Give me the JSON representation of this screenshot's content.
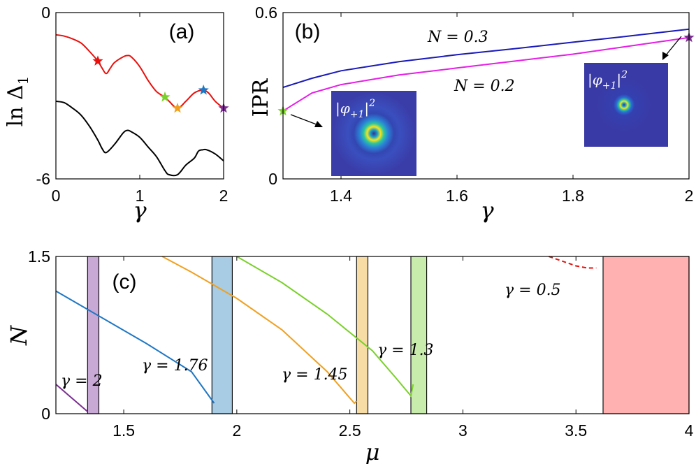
{
  "chart_data": [
    {
      "panel": "(a)",
      "type": "line",
      "xlabel": "γ",
      "ylabel": "ln Δ",
      "ylabel_sub": "1",
      "xlim": [
        0,
        2
      ],
      "ylim": [
        -6,
        0
      ],
      "xticks": [
        0,
        1,
        2
      ],
      "xtick_labels": [
        "0",
        "1",
        "2"
      ],
      "yticks": [
        0,
        -6
      ],
      "ytick_labels": [
        "0",
        "-6"
      ],
      "series": [
        {
          "name": "upper",
          "color": "#e8100c",
          "x": [
            0,
            0.1,
            0.2,
            0.3,
            0.4,
            0.5,
            0.55,
            0.6,
            0.65,
            0.7,
            0.8,
            0.85,
            0.9,
            1.0,
            1.1,
            1.2,
            1.3,
            1.35,
            1.45,
            1.55,
            1.65,
            1.75,
            1.82,
            1.9,
            2.0
          ],
          "y": [
            -0.8,
            -0.85,
            -0.95,
            -1.1,
            -1.4,
            -1.75,
            -2.0,
            -2.2,
            -2.0,
            -1.8,
            -1.6,
            -1.55,
            -1.6,
            -1.95,
            -2.45,
            -2.85,
            -3.05,
            -3.2,
            -3.45,
            -3.2,
            -2.9,
            -2.8,
            -2.9,
            -3.2,
            -3.45
          ]
        },
        {
          "name": "lower",
          "color": "#000000",
          "x": [
            0,
            0.1,
            0.2,
            0.3,
            0.4,
            0.5,
            0.55,
            0.6,
            0.7,
            0.8,
            0.85,
            0.9,
            1.0,
            1.1,
            1.2,
            1.3,
            1.35,
            1.45,
            1.55,
            1.65,
            1.7,
            1.75,
            1.8,
            1.9,
            2.0
          ],
          "y": [
            -3.2,
            -3.25,
            -3.45,
            -3.7,
            -4.1,
            -4.6,
            -4.9,
            -5.05,
            -4.75,
            -4.35,
            -4.25,
            -4.3,
            -4.5,
            -4.85,
            -5.2,
            -5.7,
            -5.85,
            -5.85,
            -5.5,
            -5.25,
            -5.0,
            -4.95,
            -4.95,
            -5.1,
            -5.35
          ]
        }
      ],
      "markers": [
        {
          "x": 0.5,
          "y": -1.75,
          "color": "#e8100c"
        },
        {
          "x": 1.3,
          "y": -3.05,
          "color": "#7ad02a"
        },
        {
          "x": 1.45,
          "y": -3.45,
          "color": "#f0a020"
        },
        {
          "x": 1.76,
          "y": -2.8,
          "color": "#1f77c4"
        },
        {
          "x": 2.0,
          "y": -3.45,
          "color": "#7a2e90"
        }
      ]
    },
    {
      "panel": "(b)",
      "type": "line",
      "xlabel": "γ",
      "ylabel": "IPR",
      "xlim": [
        1.3,
        2
      ],
      "ylim": [
        0,
        0.6
      ],
      "xticks": [
        1.4,
        1.6,
        1.8,
        2
      ],
      "xtick_labels": [
        "1.4",
        "1.6",
        "1.8",
        "2"
      ],
      "yticks": [
        0,
        0.6
      ],
      "ytick_labels": [
        "0",
        "0.6"
      ],
      "series": [
        {
          "name": "N = 0.3",
          "label_text": "N = 0.3",
          "color": "#1a1ab8",
          "x": [
            1.3,
            1.35,
            1.4,
            1.5,
            1.6,
            1.7,
            1.8,
            1.9,
            2.0
          ],
          "y": [
            0.33,
            0.363,
            0.39,
            0.423,
            0.448,
            0.47,
            0.493,
            0.516,
            0.54
          ]
        },
        {
          "name": "N = 0.2",
          "label_text": "N = 0.2",
          "color": "#e61ee6",
          "x": [
            1.3,
            1.35,
            1.4,
            1.5,
            1.6,
            1.7,
            1.8,
            1.9,
            2.0
          ],
          "y": [
            0.245,
            0.31,
            0.34,
            0.375,
            0.4,
            0.425,
            0.45,
            0.48,
            0.51
          ]
        }
      ],
      "markers": [
        {
          "x": 1.3,
          "y": 0.245,
          "color": "#7ad02a"
        },
        {
          "x": 2.0,
          "y": 0.51,
          "color": "#7a2e90"
        }
      ],
      "insets": [
        {
          "label": "|φ",
          "label_sub": "+1",
          "label_end": "|",
          "label_sup": "2",
          "pattern": "ring-halo"
        },
        {
          "label": "|φ",
          "label_sub": "+1",
          "label_end": "|",
          "label_sup": "2",
          "pattern": "ring"
        }
      ]
    },
    {
      "panel": "(c)",
      "type": "line",
      "xlabel": "μ",
      "ylabel": "N",
      "xlim": [
        1.2,
        4
      ],
      "ylim": [
        0,
        1.5
      ],
      "xticks": [
        1.5,
        2,
        2.5,
        3,
        3.5,
        4
      ],
      "xtick_labels": [
        "1.5",
        "2",
        "2.5",
        "3",
        "3.5",
        "4"
      ],
      "yticks": [
        0,
        1.5
      ],
      "ytick_labels": [
        "0",
        "1.5"
      ],
      "series": [
        {
          "name": "γ = 2",
          "label_text": "γ = 2",
          "color": "#7a2e90",
          "x": [
            1.2,
            1.34
          ],
          "y": [
            0.28,
            0.02
          ]
        },
        {
          "name": "γ = 1.76",
          "label_text": "γ = 1.76",
          "color": "#1f77c4",
          "x": [
            1.2,
            1.4,
            1.6,
            1.8,
            1.9
          ],
          "y": [
            1.17,
            0.92,
            0.67,
            0.4,
            0.1
          ]
        },
        {
          "name": "γ = 1.45",
          "label_text": "γ = 1.45",
          "color": "#f0a020",
          "x": [
            1.67,
            1.8,
            2.0,
            2.2,
            2.4,
            2.52,
            2.53
          ],
          "y": [
            1.5,
            1.35,
            1.1,
            0.8,
            0.4,
            0.1,
            0.12
          ]
        },
        {
          "name": "γ = 1.3",
          "label_text": "γ = 1.3",
          "color": "#7ad02a",
          "x": [
            2.0,
            2.2,
            2.4,
            2.6,
            2.7,
            2.77,
            2.78
          ],
          "y": [
            1.5,
            1.25,
            0.95,
            0.6,
            0.35,
            0.17,
            0.28
          ]
        },
        {
          "name": "γ = 0.5",
          "label_text": "γ = 0.5",
          "color": "#e8100c",
          "dashed": true,
          "x": [
            3.38,
            3.46,
            3.5,
            3.55,
            3.59
          ],
          "y": [
            1.5,
            1.44,
            1.41,
            1.39,
            1.39
          ]
        }
      ],
      "bands": [
        {
          "x0": 1.34,
          "x1": 1.39,
          "color": "#c8a8d4"
        },
        {
          "x0": 1.89,
          "x1": 1.98,
          "color": "#a8cce4"
        },
        {
          "x0": 2.53,
          "x1": 2.58,
          "color": "#f8dca6"
        },
        {
          "x0": 2.77,
          "x1": 2.84,
          "color": "#c8ecac"
        },
        {
          "x0": 3.62,
          "x1": 4.0,
          "color": "#ffb0b0"
        }
      ]
    }
  ]
}
